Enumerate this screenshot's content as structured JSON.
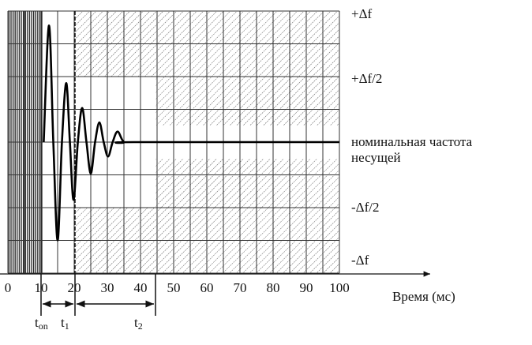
{
  "chart_data": {
    "type": "line",
    "x": [
      10.8,
      12.4,
      13.7,
      15,
      16.3,
      17.6,
      18.7,
      19.8,
      21.1,
      22.4,
      23.7,
      25,
      26.3,
      27.6,
      28.9,
      30.2,
      31.6,
      33.1,
      35,
      38,
      100
    ],
    "values": [
      0,
      0.89,
      0,
      -0.75,
      0,
      0.45,
      0,
      -0.44,
      0,
      0.26,
      0,
      -0.24,
      0,
      0.15,
      0,
      -0.11,
      0,
      0.08,
      0,
      0,
      0
    ],
    "color": "#000000",
    "xlim": [
      0,
      100
    ],
    "xticks": [
      0,
      10,
      20,
      30,
      40,
      50,
      60,
      70,
      80,
      90,
      100
    ],
    "ylim": [
      -1,
      1
    ],
    "yticks": [
      {
        "value": 1,
        "label": "+Δf"
      },
      {
        "value": 0.5,
        "label": "+Δf/2"
      },
      {
        "value": 0,
        "label": "номинальная частота несущей"
      },
      {
        "value": -0.5,
        "label": "-Δf/2"
      },
      {
        "value": -1,
        "label": "-Δf"
      }
    ],
    "grid": true,
    "x_label": "Время (мс)",
    "interval_labels": [
      {
        "main": "t",
        "sub": "on"
      },
      {
        "main": "t",
        "sub": "1"
      },
      {
        "main": "t",
        "sub": "2"
      }
    ]
  }
}
